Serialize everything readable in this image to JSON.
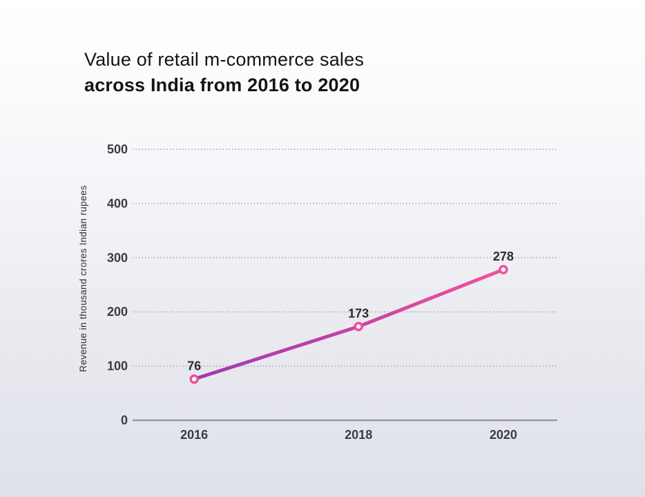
{
  "header": {
    "title_line1": "Value of retail m-commerce sales",
    "title_line2": "across India from 2016 to 2020"
  },
  "chart_data": {
    "type": "line",
    "title": "Value of retail m-commerce sales across India from 2016 to 2020",
    "categories": [
      "2016",
      "2018",
      "2020"
    ],
    "values": [
      76,
      173,
      278
    ],
    "data_labels": [
      "76",
      "173",
      "278"
    ],
    "xlabel": "",
    "ylabel": "Revenue in thousand crores Indian rupees",
    "ylim": [
      0,
      500
    ],
    "yticks": [
      0,
      100,
      200,
      300,
      400,
      500
    ],
    "grid": "horizontal dotted",
    "legend": "none",
    "line_gradient": [
      "#9b3ab2",
      "#c8429f",
      "#f2539d"
    ],
    "marker": {
      "fill": "#ffffff",
      "stroke": "#ef4f9c"
    },
    "axis_color": "#98989e",
    "gridline_color": "#b0b0b6",
    "background_top": "#ffffff",
    "background_bottom": "#dfe1e9"
  }
}
